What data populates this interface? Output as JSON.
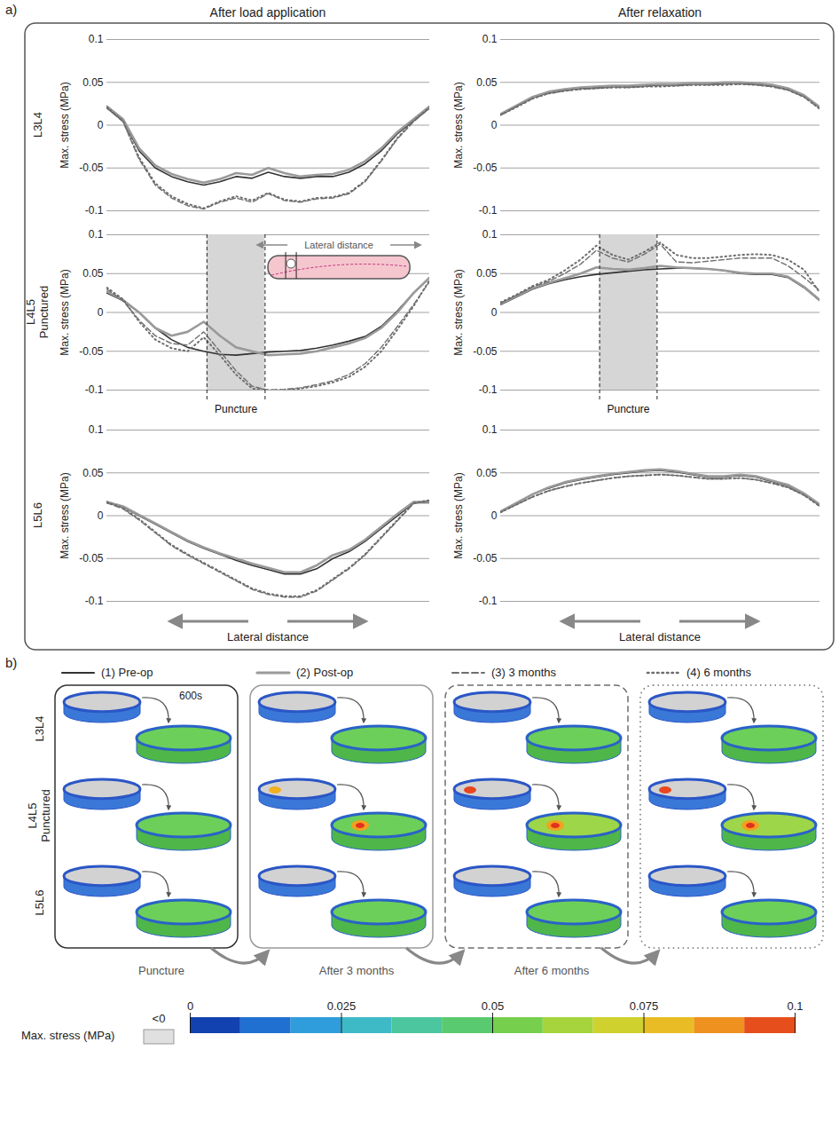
{
  "figure": {
    "panel_a_label": "a)",
    "panel_b_label": "b)",
    "columns": [
      "After load application",
      "After relaxation"
    ],
    "rows": [
      "L3L4",
      "L4L5 Punctured",
      "L5L6"
    ]
  },
  "chart_data": [
    {
      "type": "line",
      "ylabel": "Max. stress (MPa)",
      "x": [
        0,
        5,
        10,
        15,
        20,
        25,
        30,
        35,
        40,
        45,
        50,
        55,
        60,
        65,
        70,
        75,
        80,
        85,
        90,
        95,
        100
      ],
      "xlim": [
        0,
        100
      ],
      "ylim": [
        -0.1,
        0.1
      ],
      "yticks": [
        -0.1,
        -0.05,
        0,
        0.05,
        0.1
      ],
      "grid": true,
      "tick_labels": "y",
      "series": [
        {
          "name": "(1) Pre-op",
          "color": "#333333",
          "line_style": "solid",
          "values": [
            0.02,
            0.005,
            -0.03,
            -0.05,
            -0.06,
            -0.066,
            -0.07,
            -0.066,
            -0.06,
            -0.062,
            -0.055,
            -0.06,
            -0.062,
            -0.06,
            -0.06,
            -0.055,
            -0.045,
            -0.03,
            -0.01,
            0.005,
            0.02
          ]
        },
        {
          "name": "(2) Post-op",
          "color": "#9a9a9a",
          "line_style": "solid",
          "values": [
            0.022,
            0.007,
            -0.027,
            -0.047,
            -0.057,
            -0.063,
            -0.067,
            -0.063,
            -0.056,
            -0.058,
            -0.05,
            -0.056,
            -0.06,
            -0.058,
            -0.057,
            -0.052,
            -0.042,
            -0.027,
            -0.008,
            0.007,
            0.022
          ]
        },
        {
          "name": "(3) 3 months",
          "color": "#6e6e6e",
          "line_style": "dashed",
          "values": [
            0.02,
            0.004,
            -0.04,
            -0.07,
            -0.085,
            -0.094,
            -0.098,
            -0.09,
            -0.085,
            -0.09,
            -0.08,
            -0.088,
            -0.09,
            -0.086,
            -0.085,
            -0.08,
            -0.066,
            -0.042,
            -0.016,
            0.004,
            0.02
          ]
        },
        {
          "name": "(4) 6 months",
          "color": "#6e6e6e",
          "line_style": "dotted",
          "values": [
            0.021,
            0.005,
            -0.038,
            -0.068,
            -0.083,
            -0.092,
            -0.097,
            -0.089,
            -0.083,
            -0.088,
            -0.079,
            -0.087,
            -0.089,
            -0.085,
            -0.084,
            -0.079,
            -0.065,
            -0.041,
            -0.015,
            0.005,
            0.021
          ]
        }
      ]
    },
    {
      "type": "line",
      "ylabel": "Max. stress (MPa)",
      "x": [
        0,
        5,
        10,
        15,
        20,
        25,
        30,
        35,
        40,
        45,
        50,
        55,
        60,
        65,
        70,
        75,
        80,
        85,
        90,
        95,
        100
      ],
      "xlim": [
        0,
        100
      ],
      "ylim": [
        -0.1,
        0.1
      ],
      "yticks": [
        -0.1,
        -0.05,
        0,
        0.05,
        0.1
      ],
      "grid": true,
      "tick_labels": "y",
      "series": [
        {
          "name": "(1) Pre-op",
          "color": "#333333",
          "line_style": "solid",
          "values": [
            0.012,
            0.022,
            0.032,
            0.038,
            0.041,
            0.043,
            0.044,
            0.045,
            0.045,
            0.046,
            0.047,
            0.047,
            0.048,
            0.048,
            0.049,
            0.049,
            0.048,
            0.046,
            0.042,
            0.034,
            0.02
          ]
        },
        {
          "name": "(2) Post-op",
          "color": "#9a9a9a",
          "line_style": "solid",
          "values": [
            0.013,
            0.023,
            0.033,
            0.039,
            0.042,
            0.044,
            0.045,
            0.046,
            0.046,
            0.047,
            0.048,
            0.048,
            0.049,
            0.049,
            0.05,
            0.05,
            0.049,
            0.047,
            0.043,
            0.035,
            0.021
          ]
        },
        {
          "name": "(3) 3 months",
          "color": "#6e6e6e",
          "line_style": "dashed",
          "values": [
            0.012,
            0.022,
            0.031,
            0.037,
            0.04,
            0.042,
            0.043,
            0.044,
            0.044,
            0.045,
            0.046,
            0.046,
            0.047,
            0.047,
            0.048,
            0.048,
            0.047,
            0.045,
            0.041,
            0.033,
            0.019
          ]
        },
        {
          "name": "(4) 6 months",
          "color": "#6e6e6e",
          "line_style": "dotted",
          "values": [
            0.012,
            0.021,
            0.031,
            0.037,
            0.04,
            0.042,
            0.043,
            0.044,
            0.044,
            0.045,
            0.045,
            0.046,
            0.047,
            0.047,
            0.047,
            0.048,
            0.047,
            0.045,
            0.041,
            0.033,
            0.019
          ]
        }
      ]
    },
    {
      "type": "line",
      "ylabel": "Max. stress (MPa)",
      "x": [
        0,
        5,
        10,
        15,
        20,
        25,
        30,
        35,
        40,
        45,
        50,
        55,
        60,
        65,
        70,
        75,
        80,
        85,
        90,
        95,
        100
      ],
      "xlim": [
        0,
        100
      ],
      "ylim": [
        -0.1,
        0.1
      ],
      "yticks": [
        -0.1,
        -0.05,
        0,
        0.05,
        0.1
      ],
      "grid": true,
      "tick_labels": "y",
      "puncture": {
        "x": [
          31,
          49
        ],
        "label": "Puncture"
      },
      "inset_label": "Lateral distance",
      "series": [
        {
          "name": "(1) Pre-op",
          "color": "#333333",
          "line_style": "solid",
          "values": [
            0.025,
            0.015,
            0.0,
            -0.02,
            -0.035,
            -0.045,
            -0.05,
            -0.054,
            -0.055,
            -0.053,
            -0.051,
            -0.05,
            -0.049,
            -0.046,
            -0.042,
            -0.037,
            -0.031,
            -0.018,
            0.002,
            0.025,
            0.045
          ]
        },
        {
          "name": "(2) Post-op",
          "color": "#9a9a9a",
          "line_style": "solid",
          "values": [
            0.027,
            0.016,
            0.0,
            -0.02,
            -0.03,
            -0.025,
            -0.012,
            -0.03,
            -0.045,
            -0.05,
            -0.055,
            -0.054,
            -0.053,
            -0.05,
            -0.045,
            -0.04,
            -0.033,
            -0.02,
            0.0,
            0.025,
            0.045
          ]
        },
        {
          "name": "(3) 3 months",
          "color": "#6e6e6e",
          "line_style": "dashed",
          "values": [
            0.03,
            0.015,
            -0.01,
            -0.03,
            -0.04,
            -0.042,
            -0.025,
            -0.05,
            -0.075,
            -0.095,
            -0.1,
            -0.099,
            -0.097,
            -0.093,
            -0.088,
            -0.08,
            -0.066,
            -0.045,
            -0.018,
            0.01,
            0.04
          ]
        },
        {
          "name": "(4) 6 months",
          "color": "#6e6e6e",
          "line_style": "dotted",
          "values": [
            0.032,
            0.017,
            -0.012,
            -0.035,
            -0.046,
            -0.05,
            -0.032,
            -0.055,
            -0.08,
            -0.098,
            -0.1,
            -0.1,
            -0.098,
            -0.095,
            -0.09,
            -0.083,
            -0.07,
            -0.05,
            -0.022,
            0.008,
            0.042
          ]
        }
      ]
    },
    {
      "type": "line",
      "ylabel": "Max. stress (MPa)",
      "x": [
        0,
        5,
        10,
        15,
        20,
        25,
        30,
        35,
        40,
        45,
        50,
        55,
        60,
        65,
        70,
        75,
        80,
        85,
        90,
        95,
        100
      ],
      "xlim": [
        0,
        100
      ],
      "ylim": [
        -0.1,
        0.1
      ],
      "yticks": [
        -0.1,
        -0.05,
        0,
        0.05,
        0.1
      ],
      "grid": true,
      "tick_labels": "y",
      "puncture": {
        "x": [
          31,
          49
        ],
        "label": "Puncture"
      },
      "series": [
        {
          "name": "(1) Pre-op",
          "color": "#333333",
          "line_style": "solid",
          "values": [
            0.01,
            0.02,
            0.03,
            0.037,
            0.042,
            0.046,
            0.049,
            0.051,
            0.053,
            0.055,
            0.056,
            0.057,
            0.057,
            0.056,
            0.054,
            0.05,
            0.049,
            0.049,
            0.045,
            0.032,
            0.015
          ]
        },
        {
          "name": "(2) Post-op",
          "color": "#9a9a9a",
          "line_style": "solid",
          "values": [
            0.011,
            0.021,
            0.031,
            0.038,
            0.044,
            0.05,
            0.058,
            0.056,
            0.055,
            0.057,
            0.06,
            0.058,
            0.057,
            0.056,
            0.054,
            0.051,
            0.05,
            0.05,
            0.046,
            0.033,
            0.016
          ]
        },
        {
          "name": "(3) 3 months",
          "color": "#6e6e6e",
          "line_style": "dashed",
          "values": [
            0.012,
            0.022,
            0.033,
            0.04,
            0.05,
            0.062,
            0.08,
            0.07,
            0.065,
            0.075,
            0.088,
            0.065,
            0.064,
            0.066,
            0.068,
            0.07,
            0.07,
            0.07,
            0.06,
            0.045,
            0.028
          ]
        },
        {
          "name": "(4) 6 months",
          "color": "#6e6e6e",
          "line_style": "dotted",
          "values": [
            0.013,
            0.023,
            0.034,
            0.042,
            0.054,
            0.068,
            0.086,
            0.074,
            0.068,
            0.078,
            0.09,
            0.074,
            0.07,
            0.07,
            0.072,
            0.074,
            0.075,
            0.074,
            0.068,
            0.055,
            0.025
          ]
        }
      ]
    },
    {
      "type": "line",
      "ylabel": "Max. stress (MPa)",
      "xlabel": "Lateral distance",
      "x": [
        0,
        5,
        10,
        15,
        20,
        25,
        30,
        35,
        40,
        45,
        50,
        55,
        60,
        65,
        70,
        75,
        80,
        85,
        90,
        95,
        100
      ],
      "xlim": [
        0,
        100
      ],
      "ylim": [
        -0.1,
        0.1
      ],
      "yticks": [
        -0.1,
        -0.05,
        0,
        0.05,
        0.1
      ],
      "grid": true,
      "tick_labels": "y",
      "series": [
        {
          "name": "(1) Pre-op",
          "color": "#333333",
          "line_style": "solid",
          "values": [
            0.015,
            0.01,
            0.0,
            -0.01,
            -0.02,
            -0.03,
            -0.038,
            -0.045,
            -0.052,
            -0.058,
            -0.063,
            -0.068,
            -0.068,
            -0.062,
            -0.05,
            -0.042,
            -0.03,
            -0.015,
            0.0,
            0.015,
            0.015
          ]
        },
        {
          "name": "(2) Post-op",
          "color": "#9a9a9a",
          "line_style": "solid",
          "values": [
            0.016,
            0.011,
            0.001,
            -0.009,
            -0.019,
            -0.029,
            -0.037,
            -0.044,
            -0.05,
            -0.056,
            -0.061,
            -0.066,
            -0.066,
            -0.058,
            -0.046,
            -0.04,
            -0.028,
            -0.013,
            0.002,
            0.016,
            0.016
          ]
        },
        {
          "name": "(3) 3 months",
          "color": "#6e6e6e",
          "line_style": "dashed",
          "values": [
            0.015,
            0.008,
            -0.005,
            -0.02,
            -0.035,
            -0.046,
            -0.056,
            -0.066,
            -0.076,
            -0.086,
            -0.092,
            -0.095,
            -0.095,
            -0.088,
            -0.075,
            -0.062,
            -0.046,
            -0.026,
            -0.006,
            0.014,
            0.018
          ]
        },
        {
          "name": "(4) 6 months",
          "color": "#6e6e6e",
          "line_style": "dotted",
          "values": [
            0.016,
            0.009,
            -0.004,
            -0.019,
            -0.034,
            -0.045,
            -0.055,
            -0.065,
            -0.075,
            -0.085,
            -0.091,
            -0.094,
            -0.094,
            -0.087,
            -0.074,
            -0.061,
            -0.045,
            -0.025,
            -0.005,
            0.015,
            0.018
          ]
        }
      ]
    },
    {
      "type": "line",
      "ylabel": "Max. stress (MPa)",
      "xlabel": "Lateral distance",
      "x": [
        0,
        5,
        10,
        15,
        20,
        25,
        30,
        35,
        40,
        45,
        50,
        55,
        60,
        65,
        70,
        75,
        80,
        85,
        90,
        95,
        100
      ],
      "xlim": [
        0,
        100
      ],
      "ylim": [
        -0.1,
        0.1
      ],
      "yticks": [
        -0.1,
        -0.05,
        0,
        0.05,
        0.1
      ],
      "grid": true,
      "tick_labels": "y",
      "series": [
        {
          "name": "(1) Pre-op",
          "color": "#333333",
          "line_style": "solid",
          "values": [
            0.005,
            0.015,
            0.025,
            0.032,
            0.038,
            0.042,
            0.045,
            0.048,
            0.05,
            0.052,
            0.053,
            0.051,
            0.048,
            0.045,
            0.045,
            0.047,
            0.045,
            0.04,
            0.035,
            0.025,
            0.012
          ]
        },
        {
          "name": "(2) Post-op",
          "color": "#9a9a9a",
          "line_style": "solid",
          "values": [
            0.005,
            0.015,
            0.025,
            0.033,
            0.039,
            0.043,
            0.046,
            0.049,
            0.051,
            0.053,
            0.054,
            0.052,
            0.049,
            0.046,
            0.046,
            0.048,
            0.046,
            0.041,
            0.036,
            0.026,
            0.013
          ]
        },
        {
          "name": "(3) 3 months",
          "color": "#6e6e6e",
          "line_style": "dashed",
          "values": [
            0.004,
            0.013,
            0.022,
            0.029,
            0.034,
            0.038,
            0.041,
            0.044,
            0.046,
            0.047,
            0.048,
            0.047,
            0.045,
            0.043,
            0.043,
            0.044,
            0.042,
            0.038,
            0.033,
            0.024,
            0.011
          ]
        },
        {
          "name": "(4) 6 months",
          "color": "#6e6e6e",
          "line_style": "dotted",
          "values": [
            0.004,
            0.013,
            0.022,
            0.029,
            0.034,
            0.038,
            0.041,
            0.044,
            0.046,
            0.047,
            0.048,
            0.047,
            0.045,
            0.043,
            0.043,
            0.044,
            0.042,
            0.038,
            0.033,
            0.024,
            0.011
          ]
        }
      ]
    }
  ],
  "panel_b": {
    "time_label": "600s",
    "transitions": [
      "Puncture",
      "After 3 months",
      "After 6 months"
    ],
    "colorbar": {
      "label": "Max. stress (MPa)",
      "below_label": "<0",
      "range": [
        0,
        0.1
      ],
      "ticks": [
        0,
        0.025,
        0.05,
        0.075,
        0.1
      ]
    }
  }
}
